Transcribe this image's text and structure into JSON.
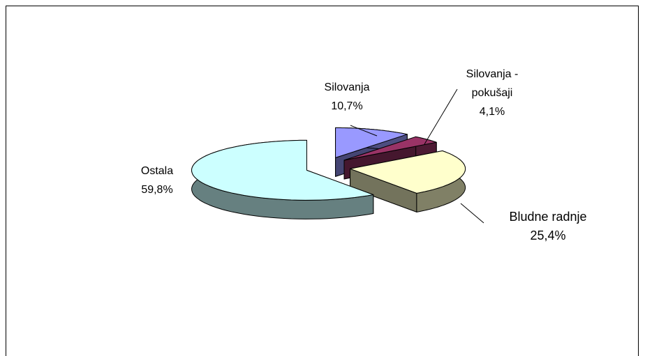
{
  "chart_data": {
    "type": "pie3d",
    "categories": [
      "Silovanja",
      "Silovanja - pokušaji",
      "Bludne radnje",
      "Ostala"
    ],
    "values": [
      10.7,
      4.1,
      25.4,
      59.8
    ],
    "value_labels": [
      "10,7%",
      "4,1%",
      "25,4%",
      "59,8%"
    ],
    "colors": [
      "#9999ff",
      "#993366",
      "#ffffcc",
      "#ccffff"
    ]
  }
}
